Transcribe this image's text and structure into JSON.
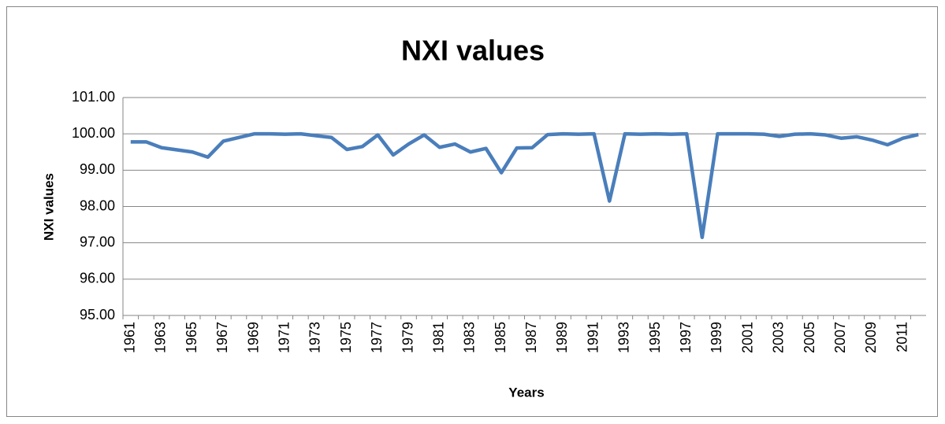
{
  "chart_data": {
    "type": "line",
    "title": "NXI values",
    "x_label": "Years",
    "y_label": "NXI values",
    "categories": [
      "1961",
      null,
      "1963",
      null,
      "1965",
      null,
      "1967",
      null,
      "1969",
      null,
      "1971",
      null,
      "1973",
      null,
      "1975",
      null,
      "1977",
      null,
      "1979",
      null,
      "1981",
      null,
      "1983",
      null,
      "1985",
      null,
      "1987",
      null,
      "1989",
      null,
      "1991",
      null,
      "1993",
      null,
      "1995",
      null,
      "1997",
      null,
      "1999",
      null,
      "2001",
      null,
      "2003",
      null,
      "2005",
      null,
      "2007",
      null,
      "2009",
      null,
      "2011",
      null
    ],
    "values": [
      99.78,
      99.78,
      99.62,
      99.56,
      99.5,
      99.36,
      99.8,
      99.9,
      100.0,
      100.0,
      99.99,
      100.0,
      99.95,
      99.9,
      99.57,
      99.65,
      99.97,
      99.42,
      99.72,
      99.97,
      99.63,
      99.72,
      99.5,
      99.6,
      98.93,
      99.61,
      99.62,
      99.98,
      100.0,
      99.99,
      100.0,
      98.15,
      100.0,
      99.99,
      100.0,
      99.99,
      100.0,
      97.15,
      100.0,
      100.0,
      100.0,
      99.99,
      99.93,
      99.99,
      100.0,
      99.97,
      99.88,
      99.92,
      99.83,
      99.7,
      99.88,
      99.98
    ],
    "color": "#4a7ebb",
    "ylim": [
      95,
      101
    ],
    "yticks": [
      {
        "value": 95,
        "label": "95.00"
      },
      {
        "value": 96,
        "label": "96.00"
      },
      {
        "value": 97,
        "label": "97.00"
      },
      {
        "value": 98,
        "label": "98.00"
      },
      {
        "value": 99,
        "label": "99.00"
      },
      {
        "value": 100,
        "label": "100.00"
      },
      {
        "value": 101,
        "label": "101.00"
      }
    ],
    "grid": true
  }
}
